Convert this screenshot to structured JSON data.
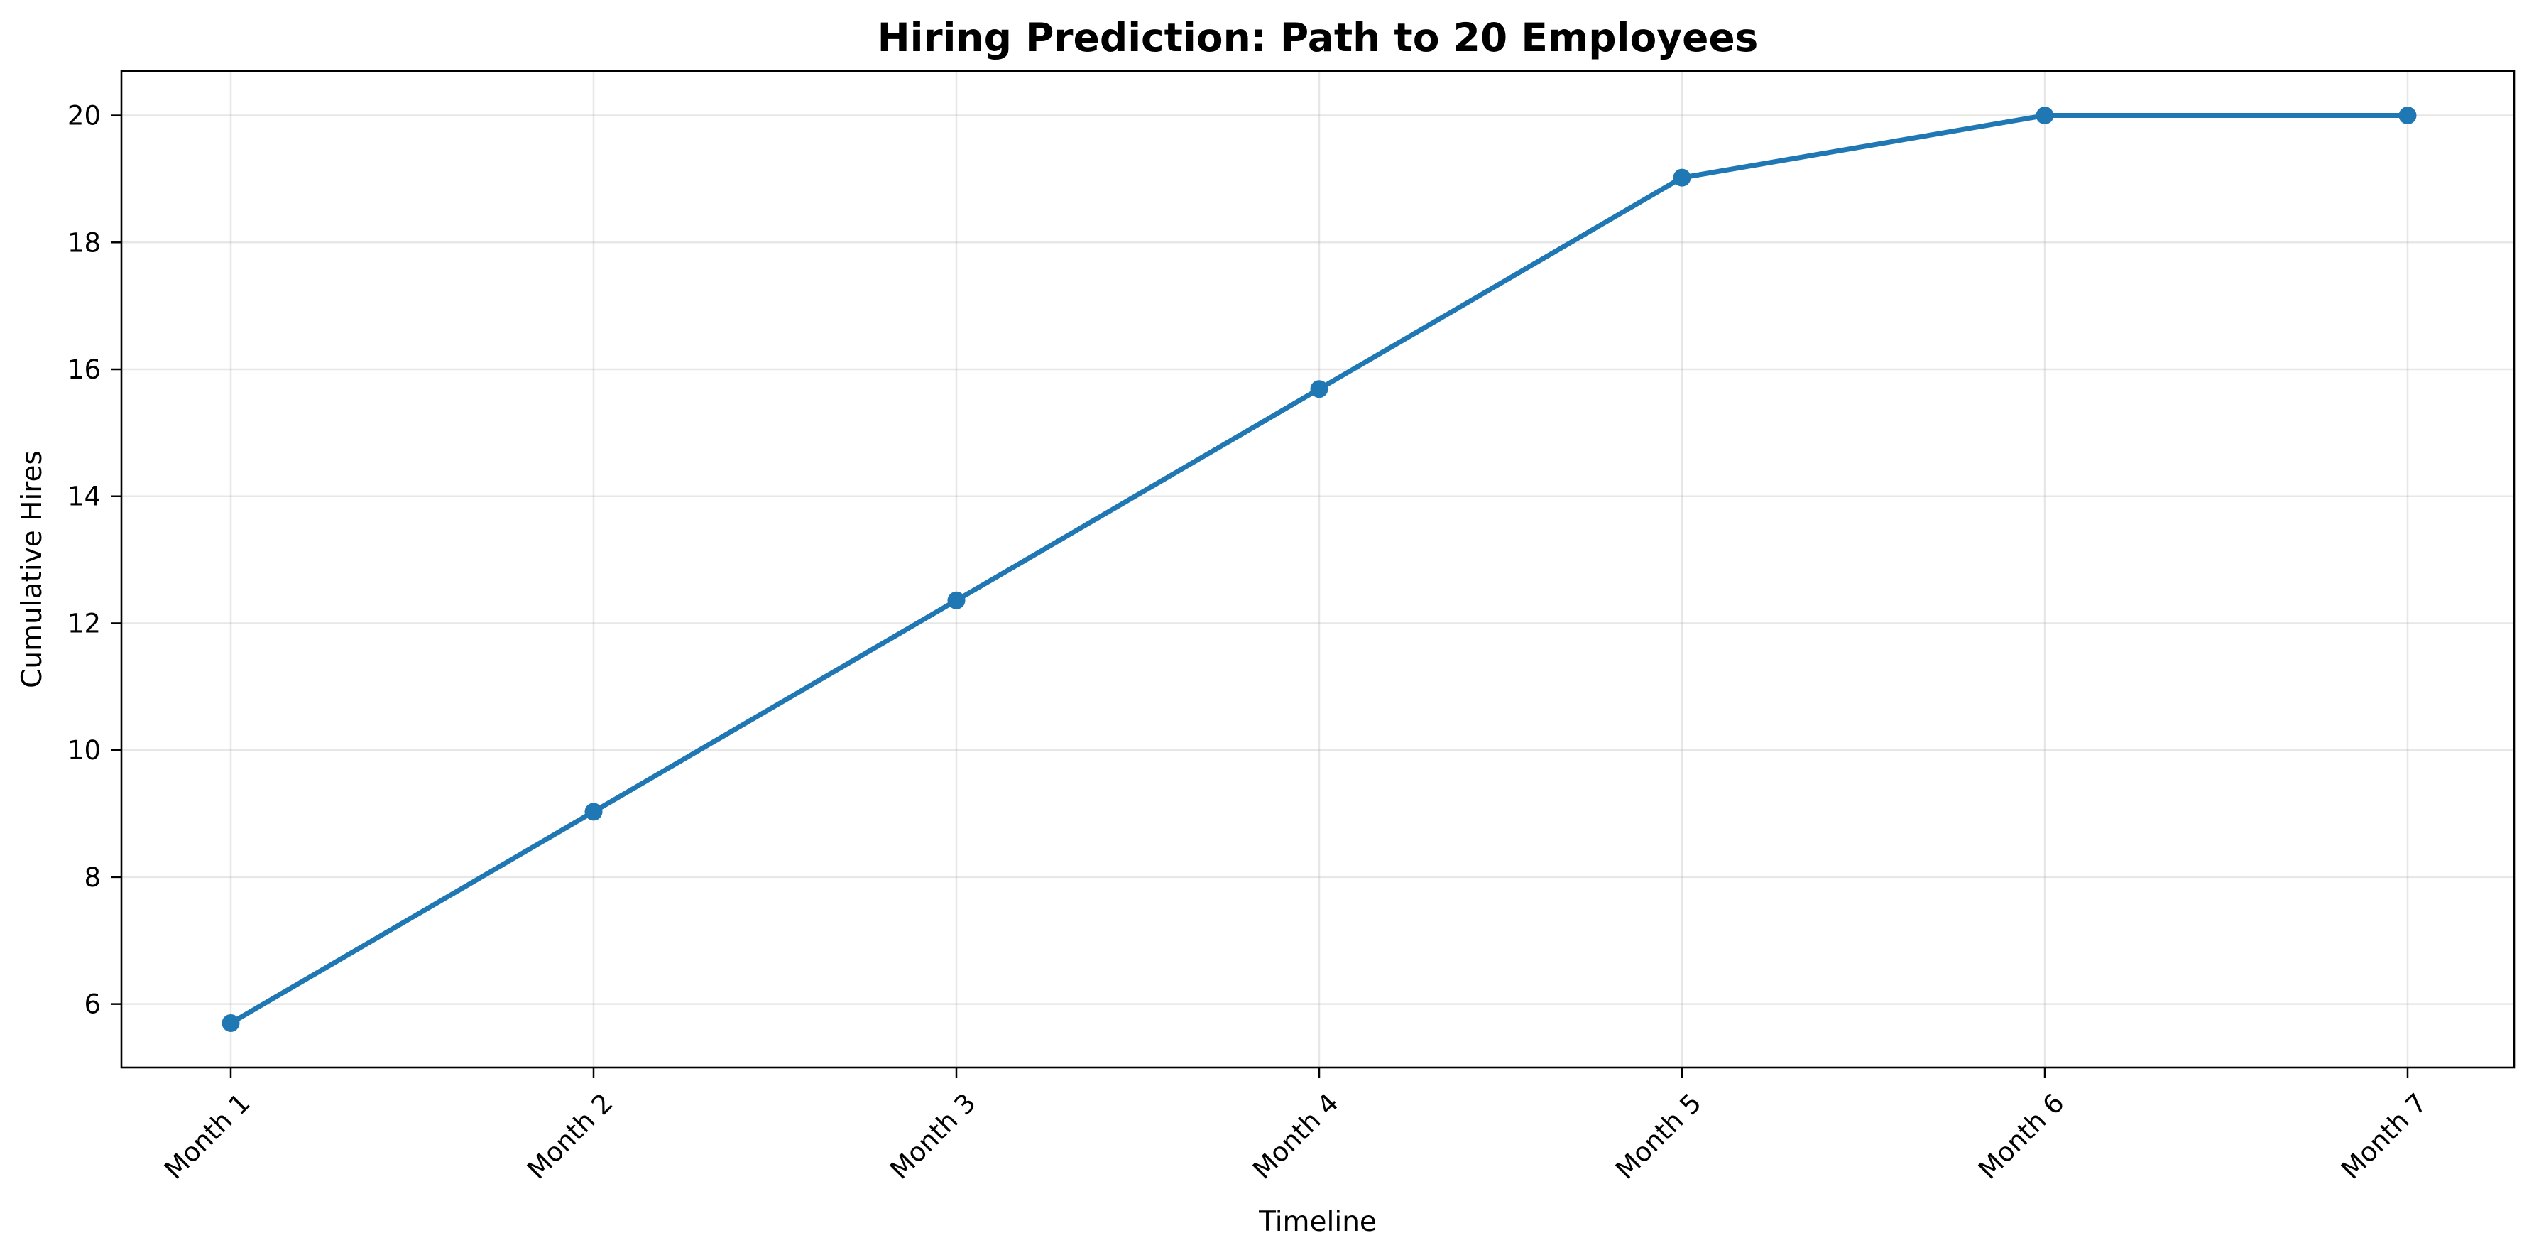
{
  "chart_data": {
    "type": "line",
    "title": "Hiring Prediction: Path to 20 Employees",
    "xlabel": "Timeline",
    "ylabel": "Cumulative Hires",
    "categories": [
      "Month 1",
      "Month 2",
      "Month 3",
      "Month 4",
      "Month 5",
      "Month 6",
      "Month 7"
    ],
    "series": [
      {
        "values": [
          5.7,
          9.03,
          12.36,
          15.69,
          19.02,
          20,
          20
        ],
        "color": "#1f77b4"
      }
    ],
    "ylim": [
      5,
      20.7
    ],
    "yticks": [
      6,
      8,
      10,
      12,
      14,
      16,
      18,
      20
    ],
    "grid": true,
    "legend": "none",
    "x_tick_rotation_deg": 45
  }
}
